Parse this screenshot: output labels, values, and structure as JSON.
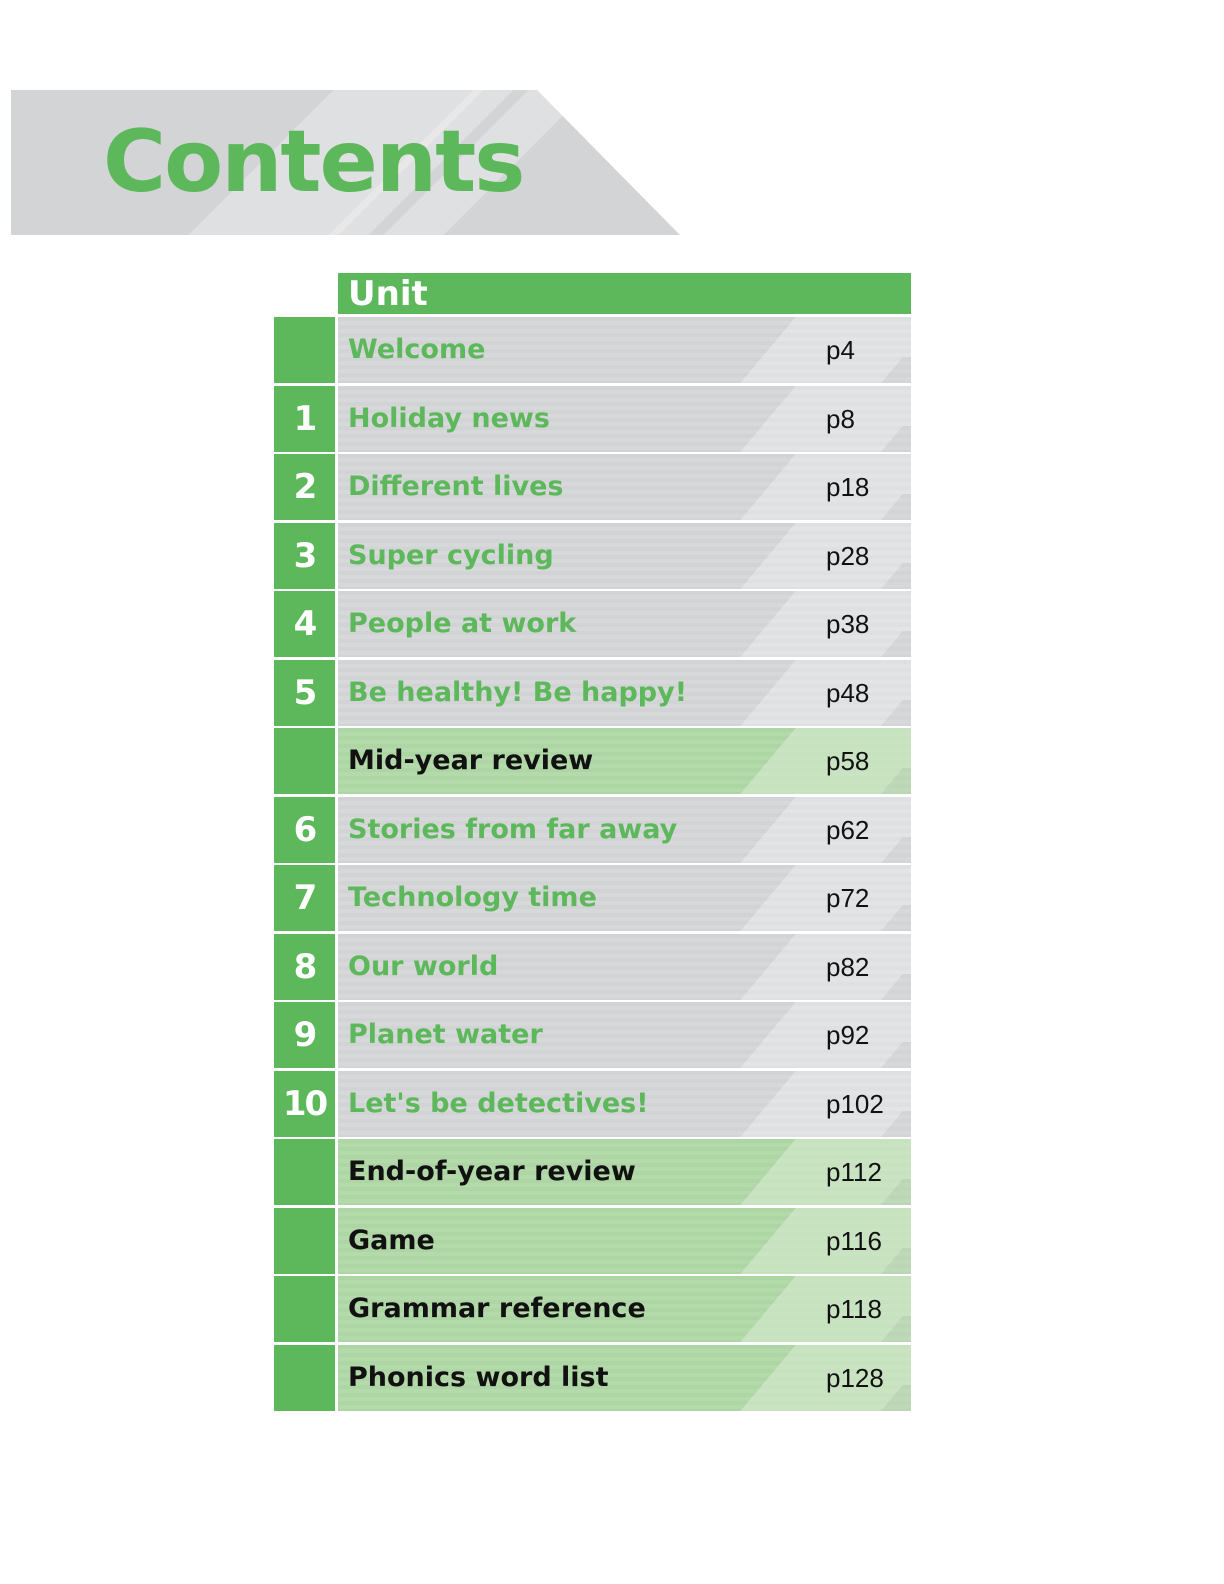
{
  "title": "Contents",
  "header": "Unit",
  "colors": {
    "accent": "#5cb85a",
    "row_gray": "#d3d4d6",
    "row_review": "#b0d7a6"
  },
  "rows": [
    {
      "num": "",
      "label": "Welcome",
      "page": "p4",
      "review": false
    },
    {
      "num": "1",
      "label": "Holiday news",
      "page": "p8",
      "review": false
    },
    {
      "num": "2",
      "label": "Different lives",
      "page": "p18",
      "review": false
    },
    {
      "num": "3",
      "label": "Super cycling",
      "page": "p28",
      "review": false
    },
    {
      "num": "4",
      "label": "People at work",
      "page": "p38",
      "review": false
    },
    {
      "num": "5",
      "label": "Be healthy! Be happy!",
      "page": "p48",
      "review": false
    },
    {
      "num": "",
      "label": "Mid-year review",
      "page": "p58",
      "review": true
    },
    {
      "num": "6",
      "label": "Stories from far away",
      "page": "p62",
      "review": false
    },
    {
      "num": "7",
      "label": "Technology time",
      "page": "p72",
      "review": false
    },
    {
      "num": "8",
      "label": "Our world",
      "page": "p82",
      "review": false
    },
    {
      "num": "9",
      "label": "Planet water",
      "page": "p92",
      "review": false
    },
    {
      "num": "10",
      "label": "Let's be detectives!",
      "page": "p102",
      "review": false
    },
    {
      "num": "",
      "label": "End-of-year review",
      "page": "p112",
      "review": true
    },
    {
      "num": "",
      "label": "Game",
      "page": "p116",
      "review": true
    },
    {
      "num": "",
      "label": "Grammar reference",
      "page": "p118",
      "review": true
    },
    {
      "num": "",
      "label": "Phonics word list",
      "page": "p128",
      "review": true
    }
  ]
}
